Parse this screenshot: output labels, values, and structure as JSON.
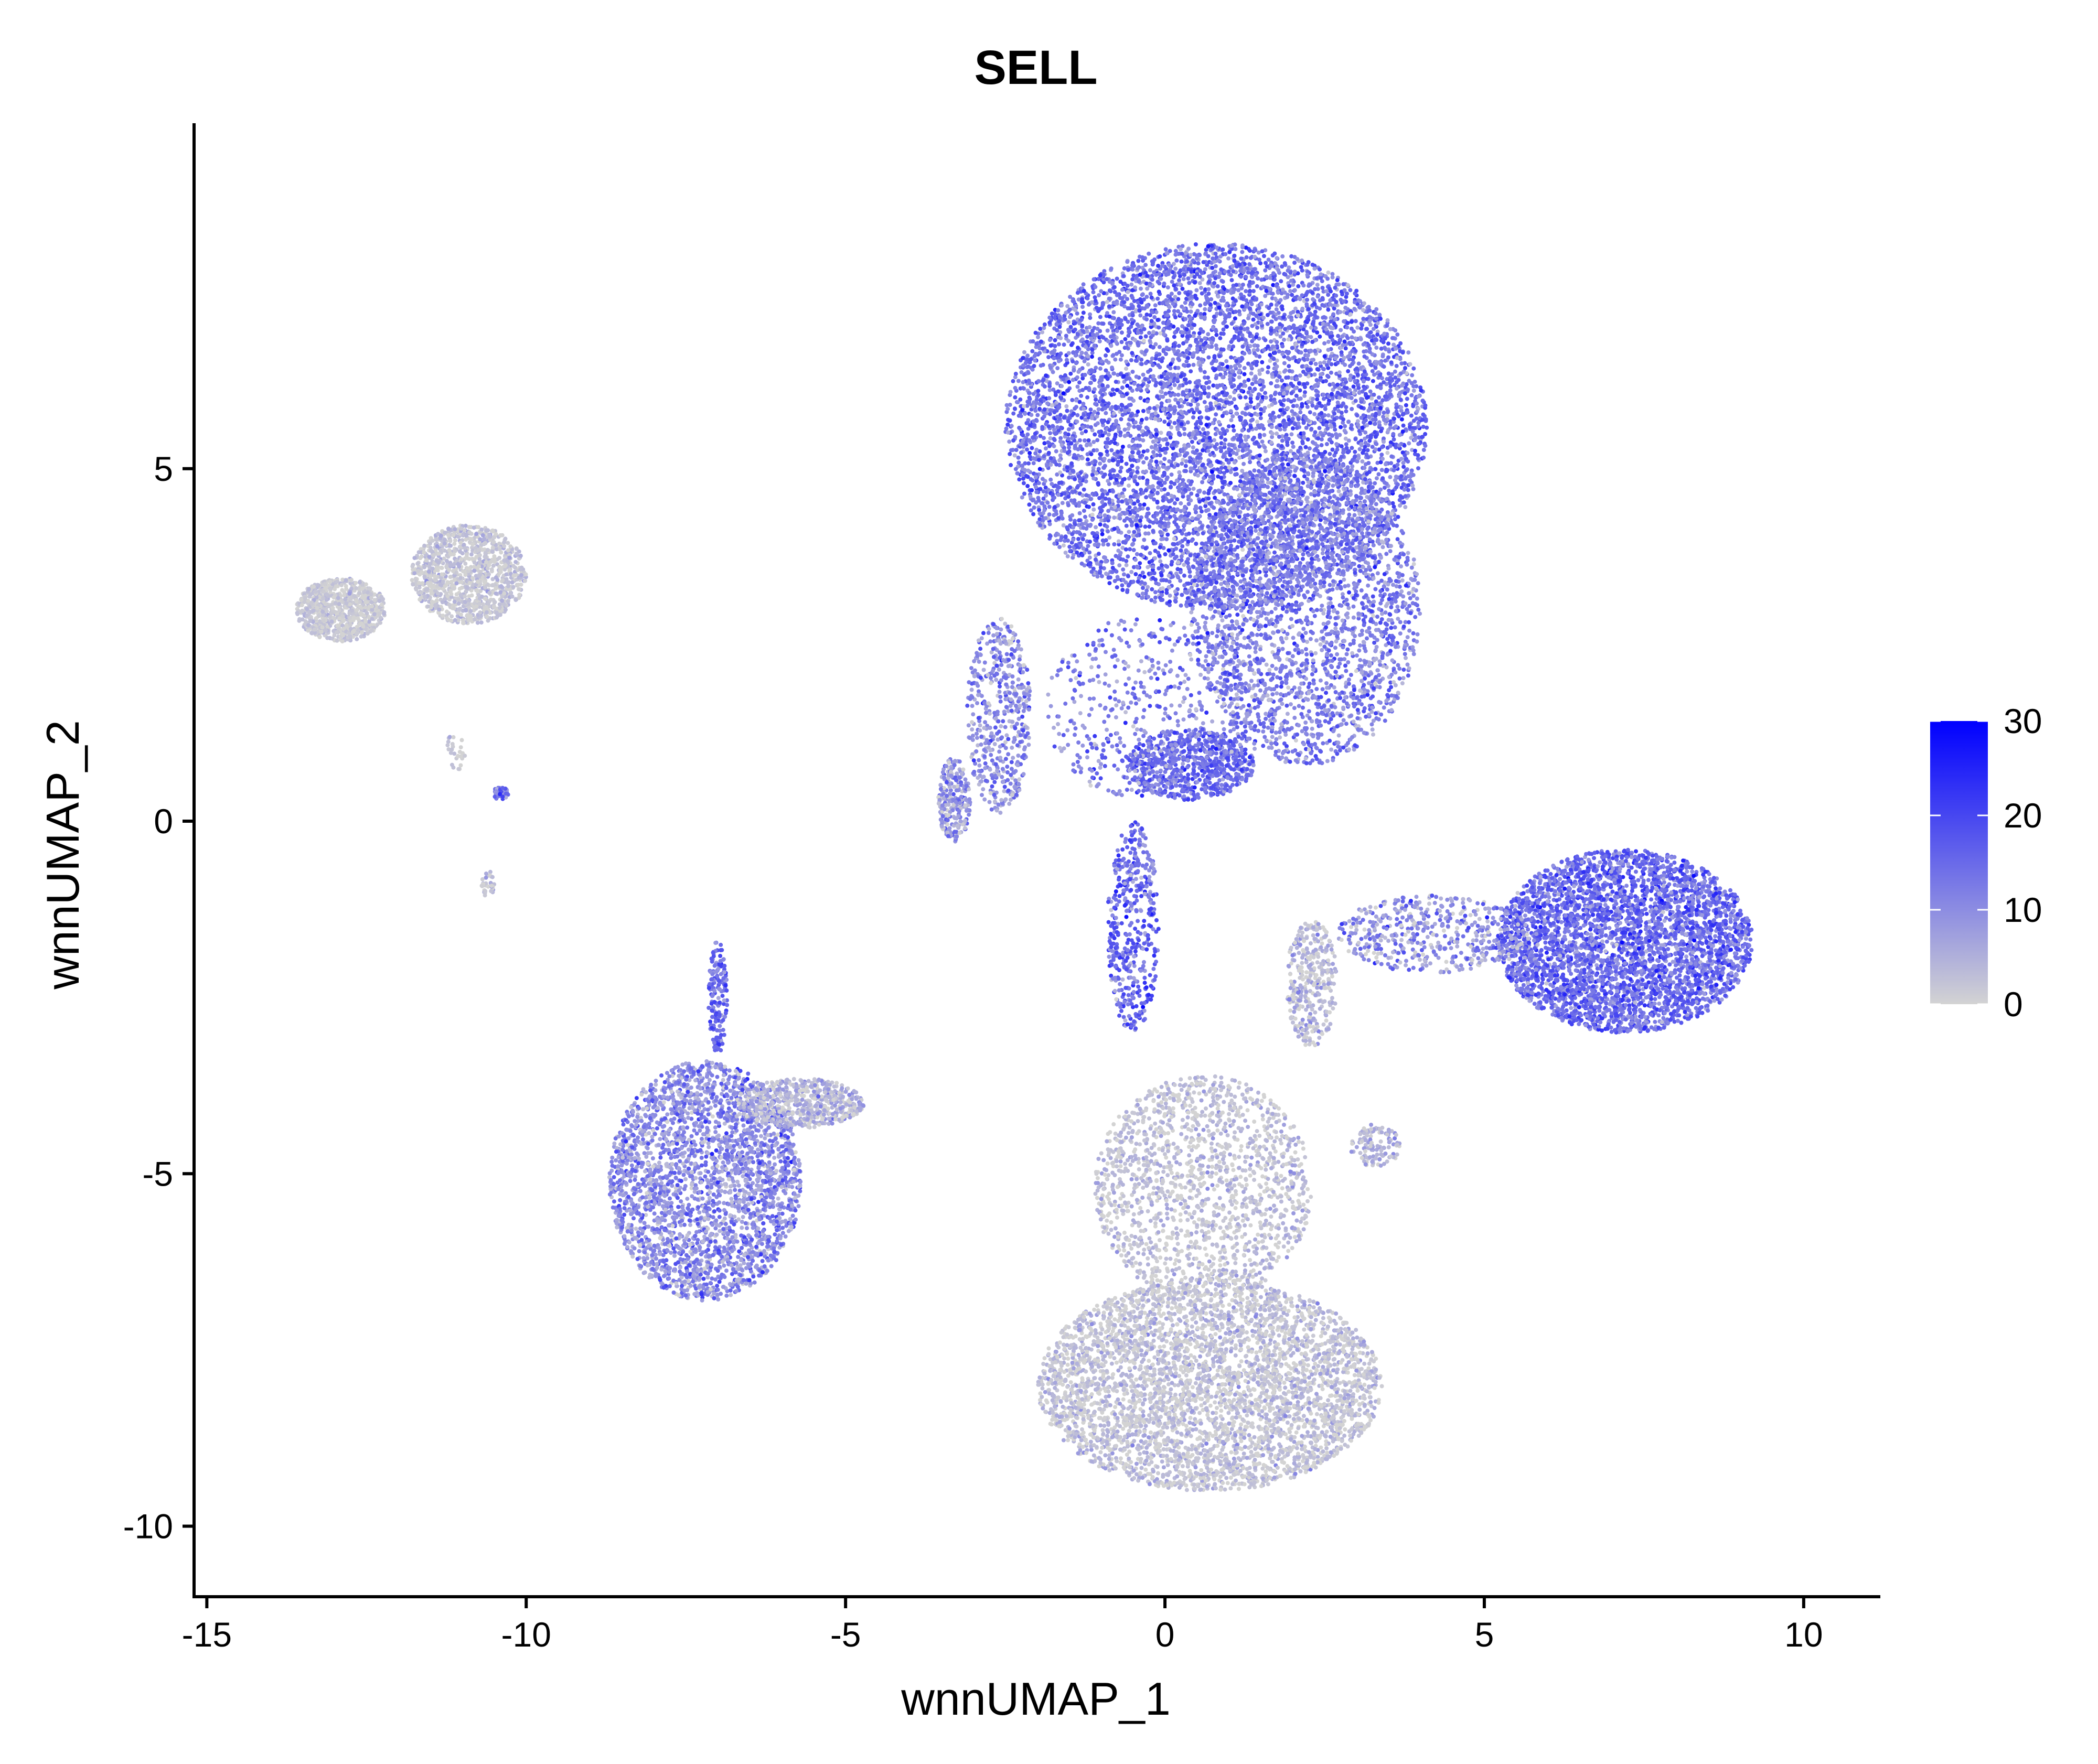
{
  "chart_data": {
    "type": "scatter",
    "title": "SELL",
    "xlabel": "wnnUMAP_1",
    "ylabel": "wnnUMAP_2",
    "xlim": [
      -15.2,
      11.2
    ],
    "ylim": [
      -11.0,
      9.9
    ],
    "xticks": [
      -15,
      -10,
      -5,
      0,
      5,
      10
    ],
    "yticks": [
      -10,
      -5,
      0,
      5
    ],
    "xtick_labels": [
      "-15",
      "-10",
      "-5",
      "0",
      "5",
      "10"
    ],
    "ytick_labels": [
      "-10",
      "-5",
      "0",
      "5"
    ],
    "grid": false,
    "legend": {
      "title": "",
      "placement": "right",
      "min": 0,
      "max": 30,
      "ticks": [
        0,
        10,
        20,
        30
      ],
      "tick_labels": [
        "0",
        "10",
        "20",
        "30"
      ]
    },
    "colors": {
      "low": "#d3d3d3",
      "high": "#0000ff"
    },
    "clusters": [
      {
        "name": "naive_top",
        "cx": 0.8,
        "cy": 5.6,
        "rx": 3.3,
        "ry": 2.6,
        "n": 7000,
        "mean": 14,
        "sd": 4.5
      },
      {
        "name": "naive_lower",
        "cx": 2.2,
        "cy": 3.0,
        "rx": 1.8,
        "ry": 2.2,
        "n": 2500,
        "mean": 12,
        "sd": 4.5
      },
      {
        "name": "mid_blob",
        "cx": 0.4,
        "cy": 0.8,
        "rx": 1.0,
        "ry": 0.5,
        "n": 700,
        "mean": 15,
        "sd": 4
      },
      {
        "name": "stream_left",
        "cx": -2.6,
        "cy": 1.5,
        "rx": 0.5,
        "ry": 1.4,
        "n": 500,
        "mean": 10,
        "sd": 5
      },
      {
        "name": "stream_left_low",
        "cx": -3.3,
        "cy": 0.3,
        "rx": 0.25,
        "ry": 0.6,
        "n": 250,
        "mean": 8,
        "sd": 5
      },
      {
        "name": "middle_sparse",
        "cx": -0.3,
        "cy": 1.6,
        "rx": 1.6,
        "ry": 1.3,
        "n": 500,
        "mean": 12,
        "sd": 5
      },
      {
        "name": "diag_stream",
        "cx": -0.5,
        "cy": -1.5,
        "rx": 0.4,
        "ry": 1.5,
        "n": 450,
        "mean": 15,
        "sd": 5
      },
      {
        "name": "b_cells",
        "cx": 7.2,
        "cy": -1.7,
        "rx": 2.0,
        "ry": 1.3,
        "n": 3800,
        "mean": 15,
        "sd": 4.5
      },
      {
        "name": "bridge",
        "cx": 4.2,
        "cy": -1.6,
        "rx": 1.5,
        "ry": 0.55,
        "n": 500,
        "mean": 9,
        "sd": 6
      },
      {
        "name": "mid_grey",
        "cx": 2.3,
        "cy": -2.3,
        "rx": 0.4,
        "ry": 0.9,
        "n": 350,
        "mean": 3,
        "sd": 4
      },
      {
        "name": "mono_upper",
        "cx": 0.6,
        "cy": -5.2,
        "rx": 1.7,
        "ry": 1.6,
        "n": 1600,
        "mean": 2,
        "sd": 3
      },
      {
        "name": "mono_bottom",
        "cx": 0.7,
        "cy": -8.0,
        "rx": 2.7,
        "ry": 1.5,
        "n": 4200,
        "mean": 2,
        "sd": 3
      },
      {
        "name": "small_right",
        "cx": 3.3,
        "cy": -4.6,
        "rx": 0.4,
        "ry": 0.3,
        "n": 120,
        "mean": 4,
        "sd": 3
      },
      {
        "name": "nk_cluster",
        "cx": -7.2,
        "cy": -5.1,
        "rx": 1.5,
        "ry": 1.7,
        "n": 2800,
        "mean": 10,
        "sd": 5
      },
      {
        "name": "nk_tail",
        "cx": -5.7,
        "cy": -4.0,
        "rx": 1.0,
        "ry": 0.35,
        "n": 600,
        "mean": 4,
        "sd": 4
      },
      {
        "name": "nk_spike",
        "cx": -7.0,
        "cy": -2.5,
        "rx": 0.15,
        "ry": 0.8,
        "n": 160,
        "mean": 15,
        "sd": 4
      },
      {
        "name": "grey_left",
        "cx": -12.9,
        "cy": 3.0,
        "rx": 0.7,
        "ry": 0.45,
        "n": 800,
        "mean": 1,
        "sd": 2
      },
      {
        "name": "grey_right",
        "cx": -10.9,
        "cy": 3.5,
        "rx": 0.9,
        "ry": 0.7,
        "n": 1100,
        "mean": 1.5,
        "sd": 2.5
      },
      {
        "name": "tiny_1",
        "cx": -10.4,
        "cy": 0.4,
        "rx": 0.12,
        "ry": 0.1,
        "n": 40,
        "mean": 12,
        "sd": 5
      },
      {
        "name": "tiny_2",
        "cx": -10.6,
        "cy": -0.9,
        "rx": 0.1,
        "ry": 0.2,
        "n": 30,
        "mean": 2,
        "sd": 3
      },
      {
        "name": "tiny_3",
        "cx": -11.1,
        "cy": 1.0,
        "rx": 0.15,
        "ry": 0.3,
        "n": 25,
        "mean": 1,
        "sd": 2
      }
    ]
  }
}
